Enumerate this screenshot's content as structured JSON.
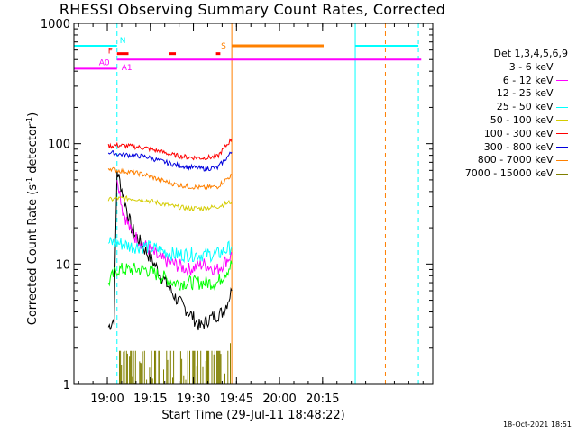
{
  "chart_data": {
    "type": "line",
    "title": "RHESSI Observing Summary Count Rates, Corrected",
    "xlabel": "Start Time (29-Jul-11 18:48:22)",
    "ylabel": "Corrected Count Rate (s⁻¹ detector⁻¹)",
    "y_scale": "log",
    "ylim": [
      1,
      1000
    ],
    "xlim_minutes_after_start": [
      0,
      125
    ],
    "x_ticks": [
      "19:00",
      "19:15",
      "19:30",
      "19:45",
      "20:00",
      "20:15"
    ],
    "y_ticks": [
      "1",
      "10",
      "100",
      "1000"
    ],
    "legend_title": "Det 1,3,4,5,6,9",
    "series": [
      {
        "name": "3 - 6 keV",
        "color": "#000000",
        "x": [
          12,
          14,
          15,
          20,
          24,
          28,
          32,
          36,
          40,
          44,
          47,
          52,
          55
        ],
        "values": [
          3,
          3.5,
          60,
          20,
          14,
          10,
          7,
          5,
          4,
          3,
          3.5,
          4,
          6
        ]
      },
      {
        "name": "6 - 12 keV",
        "color": "#ff00ff",
        "x": [
          15,
          17,
          20,
          25,
          30,
          35,
          40,
          45,
          50,
          55
        ],
        "values": [
          55,
          28,
          18,
          14,
          11,
          10,
          9,
          10,
          9,
          12
        ]
      },
      {
        "name": "12 - 25 keV",
        "color": "#00ff00",
        "x": [
          12,
          15,
          20,
          25,
          30,
          35,
          40,
          45,
          50,
          55
        ],
        "values": [
          7,
          9,
          9,
          9,
          8,
          7,
          7,
          7,
          7,
          10
        ]
      },
      {
        "name": "25 - 50 keV",
        "color": "#00ffff",
        "x": [
          12,
          15,
          20,
          25,
          30,
          35,
          40,
          45,
          50,
          55
        ],
        "values": [
          15,
          15,
          14,
          14,
          13,
          12,
          12,
          12,
          12,
          14
        ]
      },
      {
        "name": "50 - 100 keV",
        "color": "#d4cc00",
        "x": [
          12,
          15,
          20,
          25,
          30,
          35,
          40,
          45,
          50,
          55
        ],
        "values": [
          34,
          35,
          35,
          34,
          32,
          30,
          29,
          29,
          30,
          33
        ]
      },
      {
        "name": "100 - 300 keV",
        "color": "#ff0000",
        "x": [
          12,
          15,
          20,
          25,
          30,
          35,
          40,
          45,
          50,
          55
        ],
        "values": [
          95,
          97,
          95,
          92,
          86,
          80,
          77,
          76,
          78,
          110
        ]
      },
      {
        "name": "300 - 800 keV",
        "color": "#0000dd",
        "x": [
          12,
          15,
          20,
          25,
          30,
          35,
          40,
          45,
          50,
          55
        ],
        "values": [
          85,
          82,
          80,
          78,
          72,
          67,
          64,
          62,
          63,
          85
        ]
      },
      {
        "name": "800 - 7000 keV",
        "color": "#ff8000",
        "x": [
          12,
          15,
          20,
          25,
          30,
          35,
          40,
          45,
          50,
          55
        ],
        "values": [
          63,
          60,
          58,
          55,
          50,
          46,
          44,
          43,
          44,
          55
        ]
      },
      {
        "name": "7000 - 15000 keV",
        "color": "#808000",
        "x": [],
        "values": []
      }
    ],
    "flag_bars": [
      {
        "label": "N",
        "color": "#00ffff",
        "value": 650,
        "segments": [
          [
            0,
            15
          ],
          [
            98,
            120
          ]
        ]
      },
      {
        "label": "A0",
        "color": "#ff00ff",
        "value": 420,
        "segments": [
          [
            0,
            15
          ]
        ]
      },
      {
        "label": "A1",
        "color": "#ff00ff",
        "value": 500,
        "segments": [
          [
            15,
            121
          ]
        ]
      },
      {
        "label": "F",
        "color": "#ff0000",
        "value": 560,
        "segments": [
          [
            15,
            19
          ],
          [
            33,
            35.5
          ],
          [
            49.5,
            51
          ]
        ]
      },
      {
        "label": "S",
        "color": "#ff8000",
        "value": 650,
        "segments": [
          [
            55,
            87
          ]
        ]
      }
    ],
    "vertical_markers": [
      {
        "color": "#00ffff",
        "x": 0,
        "style": "solid"
      },
      {
        "color": "#00ffff",
        "x": 15,
        "style": "dashed"
      },
      {
        "color": "#ff8000",
        "x": 55,
        "style": "solid"
      },
      {
        "color": "#00ffff",
        "x": 98,
        "style": "solid"
      },
      {
        "color": "#ff8000",
        "x": 108.5,
        "style": "dashed"
      },
      {
        "color": "#00ffff",
        "x": 120,
        "style": "dashed"
      }
    ],
    "grid": false
  },
  "footer_date": "18-Oct-2021 18:51"
}
